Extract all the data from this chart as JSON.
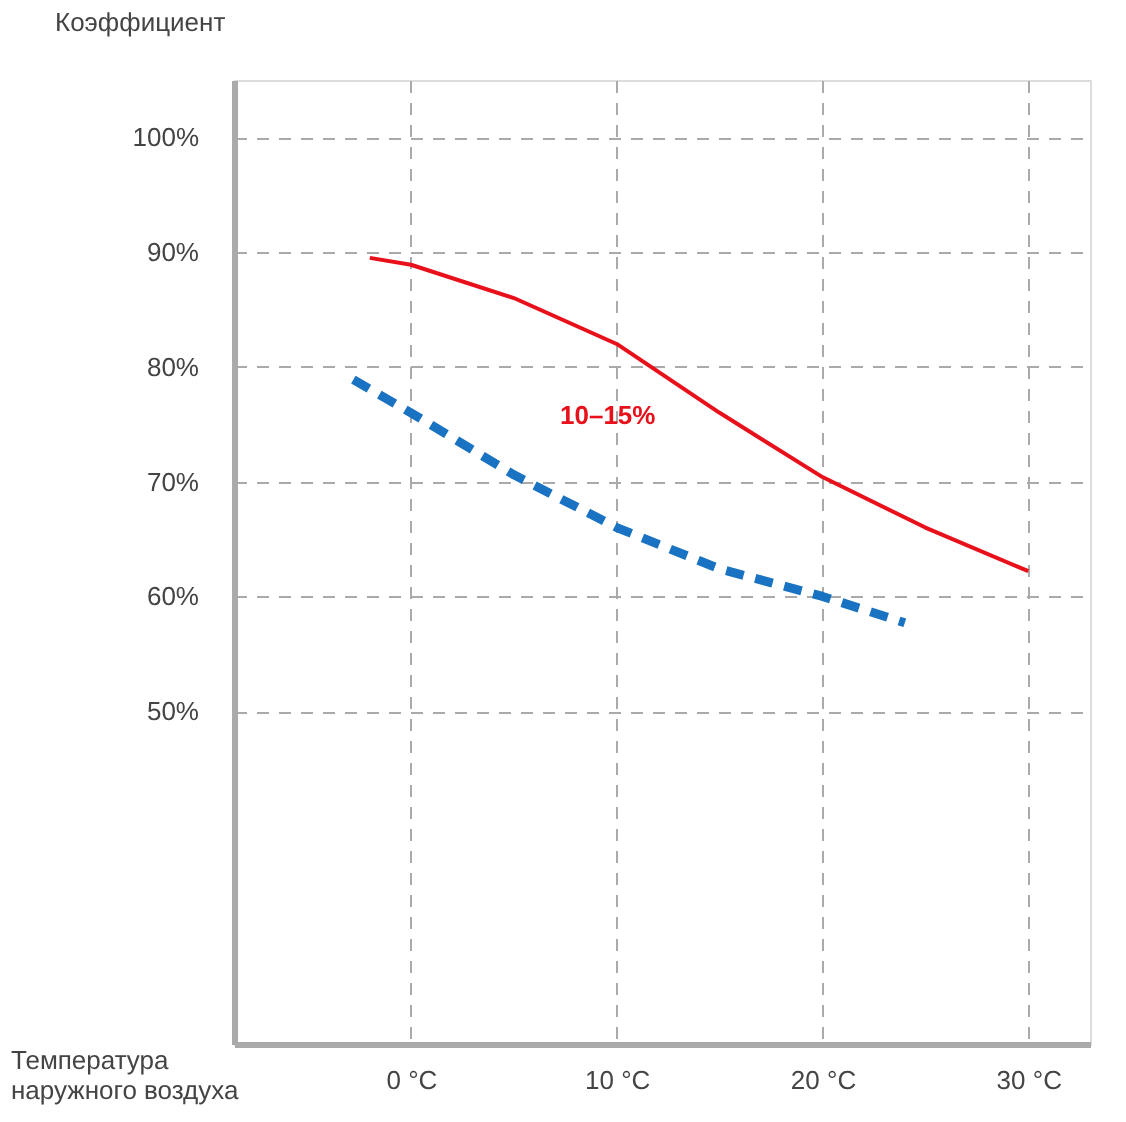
{
  "chart_data": {
    "type": "line",
    "xlabel": "Температура наружного воздуха",
    "ylabel": "Коэффициент",
    "xlim": [
      -8.6,
      33
    ],
    "ylim": [
      21,
      105
    ],
    "xticks": [
      {
        "value": 0,
        "label": "0 °C"
      },
      {
        "value": 10,
        "label": "10 °C"
      },
      {
        "value": 20,
        "label": "20 °C"
      },
      {
        "value": 30,
        "label": "30 °C"
      }
    ],
    "yticks": [
      {
        "value": 50,
        "label": "50%"
      },
      {
        "value": 60,
        "label": "60%"
      },
      {
        "value": 70,
        "label": "70%"
      },
      {
        "value": 80,
        "label": "80%"
      },
      {
        "value": 90,
        "label": "90%"
      },
      {
        "value": 100,
        "label": "100%"
      }
    ],
    "grid": true,
    "marker": "none",
    "series": [
      {
        "color": "#e8101a",
        "line_style": "solid",
        "x": [
          -2,
          0,
          5,
          10,
          15,
          20,
          25,
          30
        ],
        "values": [
          89.5,
          88.9,
          86,
          82,
          76,
          70.4,
          66,
          62.2
        ]
      },
      {
        "color": "#1a73c2",
        "line_style": "dashed",
        "x": [
          -2.8,
          0,
          5,
          10,
          15,
          20,
          24
        ],
        "values": [
          78.9,
          76,
          70.6,
          66,
          62.4,
          60,
          57.7
        ]
      }
    ],
    "annotations": [
      "10–15%"
    ]
  }
}
